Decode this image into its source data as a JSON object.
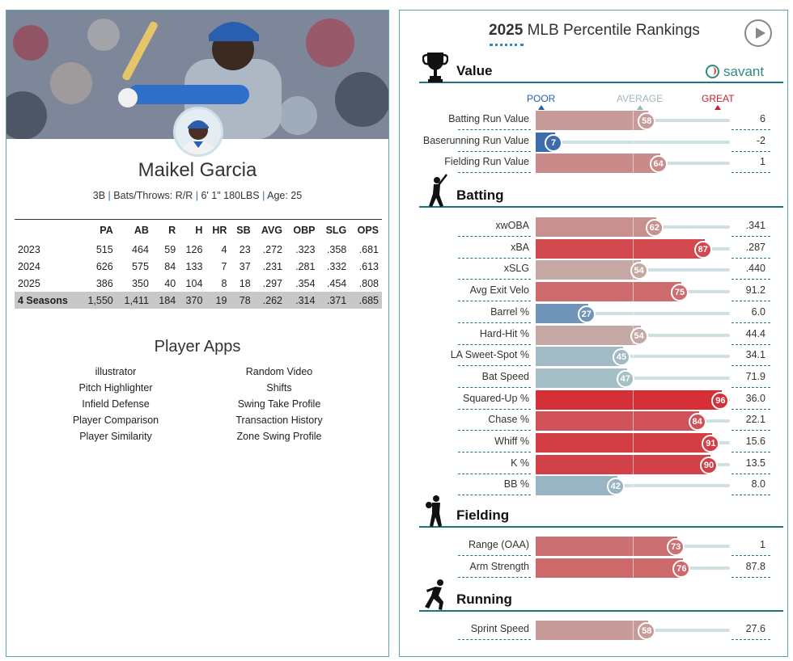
{
  "player": {
    "name": "Maikel Garcia",
    "position": "3B",
    "bats_throws": "Bats/Throws: R/R",
    "size": "6' 1\" 180LBS",
    "age": "Age: 25",
    "separator": "|"
  },
  "stats_table": {
    "headers": [
      "",
      "PA",
      "AB",
      "R",
      "H",
      "HR",
      "SB",
      "AVG",
      "OBP",
      "SLG",
      "OPS"
    ],
    "rows": [
      [
        "2023",
        "515",
        "464",
        "59",
        "126",
        "4",
        "23",
        ".272",
        ".323",
        ".358",
        ".681"
      ],
      [
        "2024",
        "626",
        "575",
        "84",
        "133",
        "7",
        "37",
        ".231",
        ".281",
        ".332",
        ".613"
      ],
      [
        "2025",
        "386",
        "350",
        "40",
        "104",
        "8",
        "18",
        ".297",
        ".354",
        ".454",
        ".808"
      ]
    ],
    "total": [
      "4 Seasons",
      "1,550",
      "1,411",
      "184",
      "370",
      "19",
      "78",
      ".262",
      ".314",
      ".371",
      ".685"
    ]
  },
  "player_apps": {
    "title": "Player Apps",
    "left": [
      "illustrator",
      "Pitch Highlighter",
      "Infield Defense",
      "Player Comparison",
      "Player Similarity"
    ],
    "right": [
      "Random Video",
      "Shifts",
      "Swing Take Profile",
      "Transaction History",
      "Zone Swing Profile"
    ]
  },
  "rankings": {
    "title_year": "2025",
    "title_rest": " MLB Percentile Rankings",
    "brand": "savant",
    "scale": {
      "poor": "POOR",
      "average": "AVERAGE",
      "great": "GREAT"
    },
    "colors": {
      "poor": "#2a5ea8",
      "average": "#9fb7ba",
      "great": "#c41f2e",
      "teal": "#1e7482"
    },
    "sections": [
      {
        "title": "Value",
        "icon": "trophy-icon",
        "metrics": [
          {
            "label": "Batting Run Value",
            "percentile": 58,
            "value": "6"
          },
          {
            "label": "Baserunning Run Value",
            "percentile": 7,
            "value": "-2"
          },
          {
            "label": "Fielding Run Value",
            "percentile": 64,
            "value": "1"
          }
        ]
      },
      {
        "title": "Batting",
        "icon": "batter-icon",
        "metrics": [
          {
            "label": "xwOBA",
            "percentile": 62,
            "value": ".341"
          },
          {
            "label": "xBA",
            "percentile": 87,
            "value": ".287"
          },
          {
            "label": "xSLG",
            "percentile": 54,
            "value": ".440"
          },
          {
            "label": "Avg Exit Velo",
            "percentile": 75,
            "value": "91.2"
          },
          {
            "label": "Barrel %",
            "percentile": 27,
            "value": "6.0"
          },
          {
            "label": "Hard-Hit %",
            "percentile": 54,
            "value": "44.4"
          },
          {
            "label": "LA Sweet-Spot %",
            "percentile": 45,
            "value": "34.1"
          },
          {
            "label": "Bat Speed",
            "percentile": 47,
            "value": "71.9"
          },
          {
            "label": "Squared-Up %",
            "percentile": 96,
            "value": "36.0"
          },
          {
            "label": "Chase %",
            "percentile": 84,
            "value": "22.1"
          },
          {
            "label": "Whiff %",
            "percentile": 91,
            "value": "15.6"
          },
          {
            "label": "K %",
            "percentile": 90,
            "value": "13.5"
          },
          {
            "label": "BB %",
            "percentile": 42,
            "value": "8.0"
          }
        ]
      },
      {
        "title": "Fielding",
        "icon": "fielder-icon",
        "metrics": [
          {
            "label": "Range (OAA)",
            "percentile": 73,
            "value": "1"
          },
          {
            "label": "Arm Strength",
            "percentile": 76,
            "value": "87.8"
          }
        ]
      },
      {
        "title": "Running",
        "icon": "runner-icon",
        "metrics": [
          {
            "label": "Sprint Speed",
            "percentile": 58,
            "value": "27.6"
          }
        ]
      }
    ]
  }
}
